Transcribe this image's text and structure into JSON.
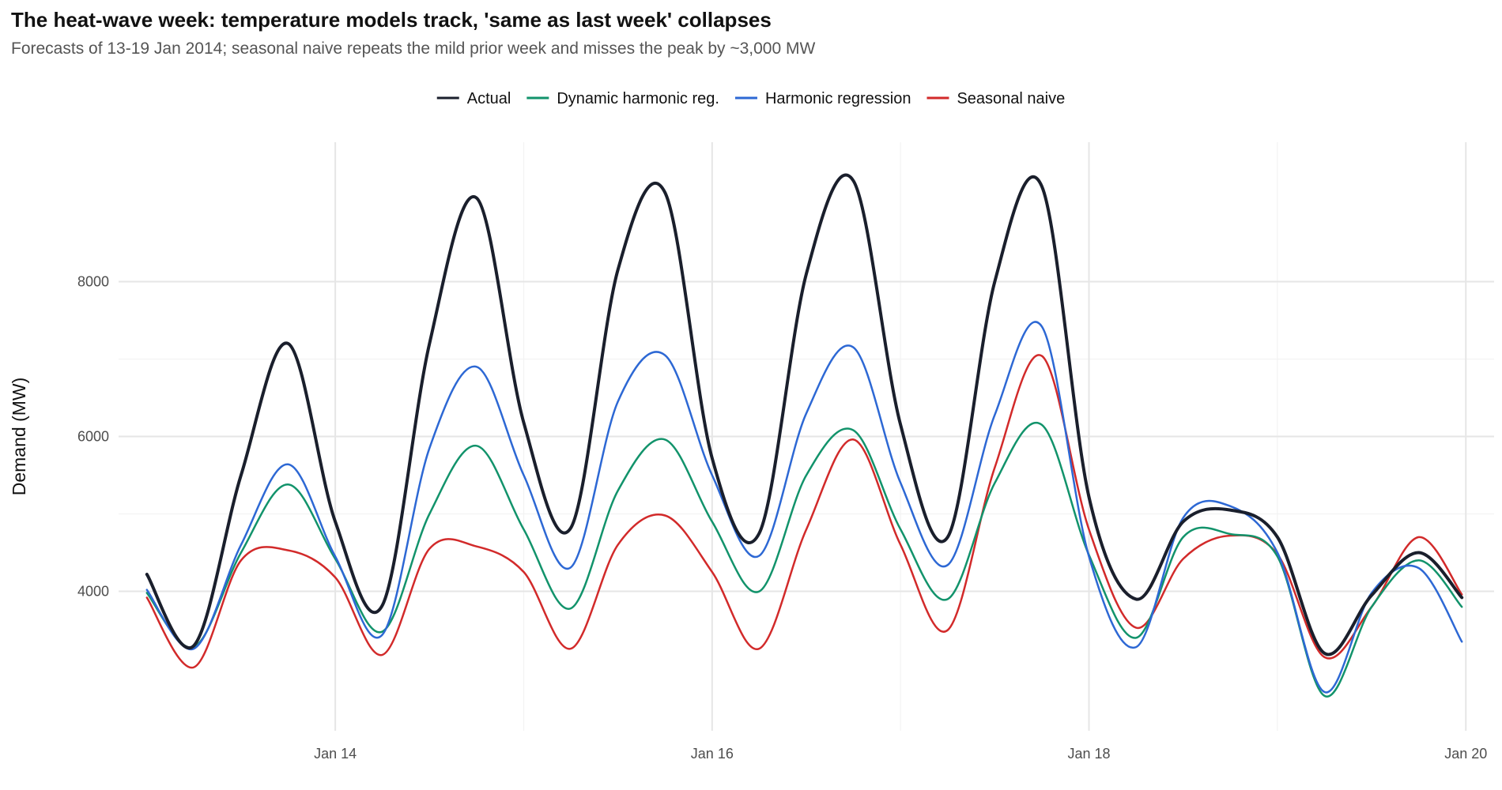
{
  "title": "The heat-wave week: temperature models track, 'same as last week' collapses",
  "subtitle": "Forecasts of 13-19 Jan 2014; seasonal naive repeats the mild prior week and misses the peak by ~3,000 MW",
  "chart_data": {
    "type": "line",
    "title": "The heat-wave week: temperature models track, 'same as last week' collapses",
    "subtitle": "Forecasts of 13-19 Jan 2014; seasonal naive repeats the mild prior week and misses the peak by ~3,000 MW",
    "xlabel": "",
    "ylabel": "Demand (MW)",
    "x_ticks": [
      "Jan 14",
      "Jan 16",
      "Jan 18",
      "Jan 20"
    ],
    "y_ticks": [
      4000,
      6000,
      8000
    ],
    "xlim_days_from_jan13": [
      -0.15,
      7.15
    ],
    "ylim": [
      2200,
      9800
    ],
    "x_unit": "days from 13 Jan 2014 00:00",
    "grid": true,
    "legend_position": "top",
    "x": [
      0,
      0.25,
      0.5,
      0.75,
      1,
      1.25,
      1.5,
      1.75,
      2,
      2.25,
      2.5,
      2.75,
      3,
      3.25,
      3.5,
      3.75,
      4,
      4.25,
      4.5,
      4.75,
      5,
      5.25,
      5.5,
      5.75,
      6,
      6.25,
      6.5,
      6.75,
      6.979
    ],
    "series": [
      {
        "name": "Actual",
        "color": "#1a1f2c",
        "width": 4,
        "values": [
          4220,
          3300,
          5500,
          7200,
          4900,
          3820,
          7200,
          9080,
          6180,
          4820,
          8150,
          9150,
          5720,
          4750,
          8100,
          9300,
          6150,
          4700,
          8000,
          9230,
          5220,
          3900,
          4900,
          5050,
          4700,
          3200,
          3950,
          4500,
          3920
        ]
      },
      {
        "name": "Dynamic harmonic reg.",
        "color": "#12936b",
        "width": 2.5,
        "values": [
          3980,
          3280,
          4500,
          5380,
          4420,
          3480,
          5000,
          5880,
          4800,
          3780,
          5300,
          5960,
          4900,
          4000,
          5500,
          6080,
          4800,
          3900,
          5400,
          6150,
          4470,
          3400,
          4700,
          4740,
          4450,
          2650,
          3800,
          4400,
          3800
        ]
      },
      {
        "name": "Harmonic regression",
        "color": "#2d68d4",
        "width": 2.5,
        "values": [
          4020,
          3260,
          4600,
          5640,
          4450,
          3440,
          5850,
          6900,
          5500,
          4310,
          6450,
          7050,
          5500,
          4460,
          6300,
          7150,
          5400,
          4340,
          6280,
          7420,
          4450,
          3280,
          4950,
          5100,
          4500,
          2700,
          3980,
          4300,
          3350
        ]
      },
      {
        "name": "Seasonal naive",
        "color": "#d22a2a",
        "width": 2.5,
        "values": [
          3920,
          3020,
          4400,
          4530,
          4180,
          3180,
          4550,
          4580,
          4250,
          3260,
          4600,
          4980,
          4250,
          3260,
          4800,
          5960,
          4600,
          3500,
          5600,
          7040,
          4800,
          3530,
          4420,
          4720,
          4480,
          3150,
          3800,
          4700,
          3960
        ]
      }
    ]
  }
}
